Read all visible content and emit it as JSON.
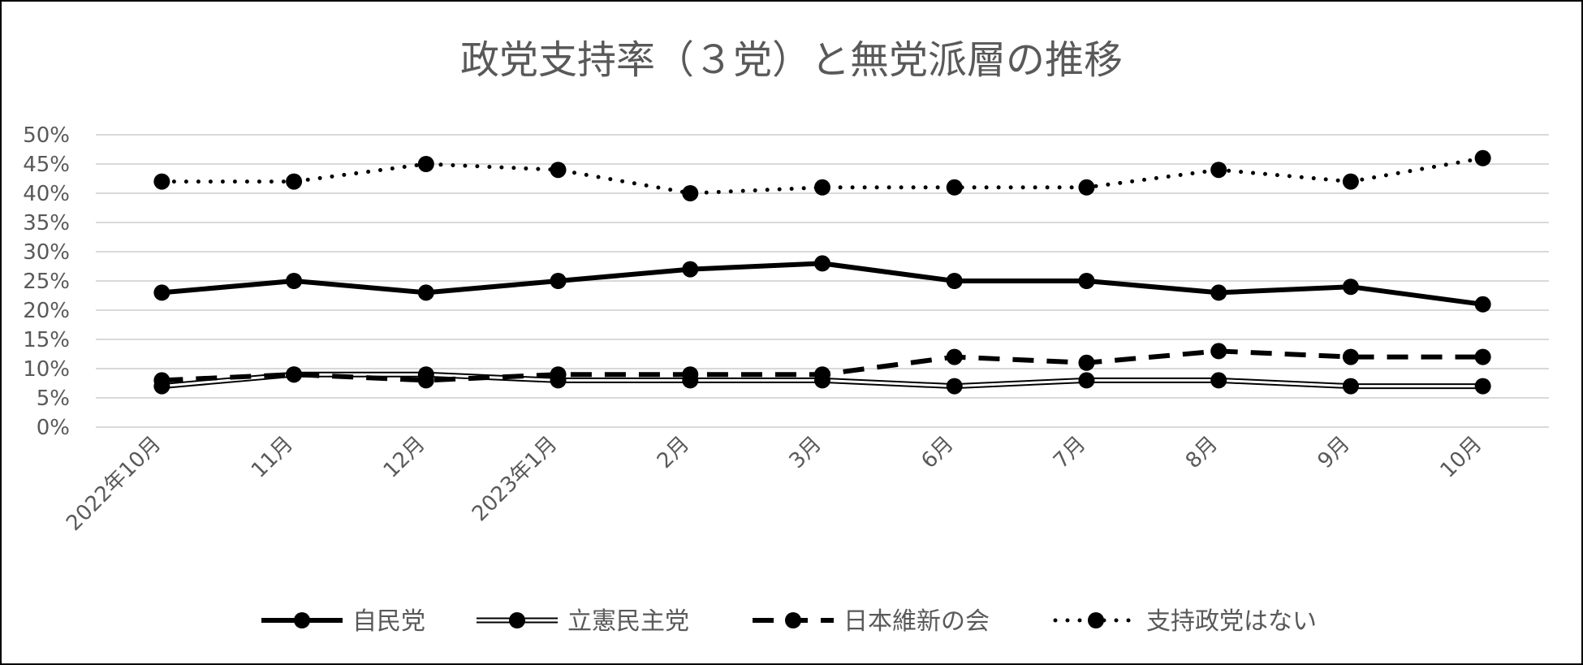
{
  "chart_data": {
    "type": "line",
    "title": "政党支持率（３党）と無党派層の推移",
    "xlabel": "",
    "ylabel": "",
    "categories": [
      "2022年10月",
      "11月",
      "12月",
      "2023年1月",
      "2月",
      "3月",
      "6月",
      "7月",
      "8月",
      "9月",
      "10月"
    ],
    "y_ticks": [
      "0%",
      "5%",
      "10%",
      "15%",
      "20%",
      "25%",
      "30%",
      "35%",
      "40%",
      "45%",
      "50%"
    ],
    "ylim": [
      0,
      50
    ],
    "y_unit": "%",
    "grid": true,
    "legend_position": "bottom",
    "series": [
      {
        "name": "自民党",
        "style": "solid-thick",
        "color": "#000000",
        "values": [
          23,
          25,
          23,
          25,
          27,
          28,
          25,
          25,
          23,
          24,
          21
        ]
      },
      {
        "name": "立憲民主党",
        "style": "double-line",
        "color": "#000000",
        "values": [
          7,
          9,
          9,
          8,
          8,
          8,
          7,
          8,
          8,
          7,
          7
        ]
      },
      {
        "name": "日本維新の会",
        "style": "dashed",
        "color": "#000000",
        "values": [
          8,
          9,
          8,
          9,
          9,
          9,
          12,
          11,
          13,
          12,
          12
        ]
      },
      {
        "name": "支持政党はない",
        "style": "dotted",
        "color": "#000000",
        "values": [
          42,
          42,
          45,
          44,
          40,
          41,
          41,
          41,
          44,
          42,
          46
        ]
      }
    ]
  }
}
